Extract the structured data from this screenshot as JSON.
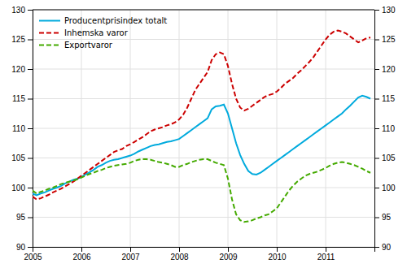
{
  "chart_data": {
    "type": "line",
    "x": [
      2005.0,
      2005.0833333333333,
      2005.1666666666667,
      2005.25,
      2005.3333333333333,
      2005.4166666666667,
      2005.5,
      2005.5833333333333,
      2005.6666666666667,
      2005.75,
      2005.8333333333333,
      2005.9166666666667,
      2006.0,
      2006.0833333333333,
      2006.1666666666667,
      2006.25,
      2006.3333333333333,
      2006.4166666666667,
      2006.5,
      2006.5833333333333,
      2006.6666666666667,
      2006.75,
      2006.8333333333333,
      2006.9166666666667,
      2007.0,
      2007.0833333333333,
      2007.1666666666667,
      2007.25,
      2007.3333333333333,
      2007.4166666666667,
      2007.5,
      2007.5833333333333,
      2007.6666666666667,
      2007.75,
      2007.8333333333333,
      2007.9166666666667,
      2008.0,
      2008.0833333333333,
      2008.1666666666667,
      2008.25,
      2008.3333333333333,
      2008.4166666666667,
      2008.5,
      2008.5833333333333,
      2008.6666666666667,
      2008.75,
      2008.8333333333333,
      2008.9166666666667,
      2009.0,
      2009.0833333333333,
      2009.1666666666667,
      2009.25,
      2009.3333333333333,
      2009.4166666666667,
      2009.5,
      2009.5833333333333,
      2009.6666666666667,
      2009.75,
      2009.8333333333333,
      2009.9166666666667,
      2010.0,
      2010.0833333333333,
      2010.1666666666667,
      2010.25,
      2010.3333333333333,
      2010.4166666666667,
      2010.5,
      2010.5833333333333,
      2010.6666666666667,
      2010.75,
      2010.8333333333333,
      2010.9166666666667,
      2011.0,
      2011.0833333333333,
      2011.1666666666667,
      2011.25,
      2011.3333333333333,
      2011.4166666666667,
      2011.5,
      2011.5833333333333,
      2011.6666666666667,
      2011.75,
      2011.8333333333333,
      2011.9166666666667
    ],
    "xlim": [
      2005.0,
      2011.999
    ],
    "xticks": [
      2005,
      2006,
      2007,
      2008,
      2009,
      2010,
      2011
    ],
    "ylim": [
      90,
      130
    ],
    "yticks": [
      90,
      95,
      100,
      105,
      110,
      115,
      120,
      125,
      130
    ],
    "y2lim": [
      90,
      130
    ],
    "y2ticks": [
      90,
      95,
      100,
      105,
      110,
      115,
      120,
      125,
      130
    ],
    "grid": true,
    "legend": "top-left",
    "series": [
      {
        "name": "Producentprisindex totalt",
        "color": "#00AADD",
        "line_style": "solid",
        "values": [
          99.0,
          98.7,
          99.0,
          99.2,
          99.5,
          99.8,
          100.0,
          100.3,
          100.7,
          101.0,
          101.3,
          101.5,
          101.8,
          102.2,
          102.6,
          103.0,
          103.5,
          103.8,
          104.2,
          104.5,
          104.7,
          104.8,
          105.0,
          105.2,
          105.4,
          105.7,
          106.1,
          106.4,
          106.7,
          107.0,
          107.2,
          107.3,
          107.5,
          107.7,
          107.8,
          108.0,
          108.2,
          108.7,
          109.2,
          109.7,
          110.2,
          110.7,
          111.2,
          111.7,
          113.2,
          113.7,
          113.8,
          114.0,
          112.5,
          110.0,
          107.5,
          105.5,
          104.0,
          102.8,
          102.3,
          102.2,
          102.5,
          103.0,
          103.5,
          104.0,
          104.5,
          105.0,
          105.5,
          106.0,
          106.5,
          107.0,
          107.5,
          108.0,
          108.5,
          109.0,
          109.5,
          110.0,
          110.5,
          111.0,
          111.5,
          112.0,
          112.5,
          113.2,
          113.8,
          114.5,
          115.2,
          115.5,
          115.3,
          115.0
        ]
      },
      {
        "name": "Inhemska varor",
        "color": "#CC0000",
        "line_style": "dashed",
        "values": [
          98.5,
          98.0,
          98.2,
          98.5,
          98.8,
          99.2,
          99.5,
          99.8,
          100.2,
          100.6,
          101.0,
          101.5,
          102.0,
          102.5,
          103.0,
          103.5,
          104.0,
          104.5,
          105.0,
          105.5,
          106.0,
          106.3,
          106.5,
          107.0,
          107.3,
          107.7,
          108.1,
          108.5,
          109.0,
          109.5,
          109.8,
          110.0,
          110.2,
          110.5,
          110.7,
          111.0,
          111.5,
          112.3,
          113.5,
          115.0,
          116.5,
          117.5,
          118.5,
          119.5,
          121.5,
          122.5,
          122.8,
          122.5,
          120.5,
          117.5,
          115.0,
          113.5,
          113.0,
          113.3,
          113.8,
          114.3,
          114.8,
          115.3,
          115.6,
          115.8,
          116.2,
          116.8,
          117.5,
          118.0,
          118.5,
          119.2,
          119.8,
          120.5,
          121.2,
          122.0,
          123.0,
          124.0,
          125.0,
          125.8,
          126.3,
          126.5,
          126.3,
          126.0,
          125.5,
          125.0,
          124.5,
          124.8,
          125.2,
          125.3
        ]
      },
      {
        "name": "Exportvaror",
        "color": "#44AA00",
        "line_style": "dashed",
        "values": [
          99.5,
          99.0,
          99.3,
          99.5,
          99.8,
          100.0,
          100.3,
          100.6,
          100.8,
          101.0,
          101.2,
          101.4,
          101.7,
          102.0,
          102.3,
          102.5,
          102.8,
          103.0,
          103.3,
          103.5,
          103.7,
          103.8,
          103.9,
          104.0,
          104.2,
          104.5,
          104.7,
          104.8,
          104.8,
          104.7,
          104.5,
          104.3,
          104.2,
          104.0,
          103.8,
          103.5,
          103.5,
          103.8,
          104.0,
          104.3,
          104.5,
          104.7,
          104.8,
          104.8,
          104.5,
          104.2,
          104.0,
          103.8,
          101.5,
          98.0,
          95.5,
          94.5,
          94.2,
          94.3,
          94.5,
          94.8,
          95.0,
          95.3,
          95.5,
          96.0,
          96.5,
          97.5,
          98.5,
          99.5,
          100.3,
          101.0,
          101.5,
          102.0,
          102.3,
          102.5,
          102.7,
          103.0,
          103.3,
          103.7,
          104.0,
          104.2,
          104.3,
          104.2,
          104.0,
          103.8,
          103.5,
          103.2,
          102.8,
          102.5
        ]
      }
    ]
  }
}
